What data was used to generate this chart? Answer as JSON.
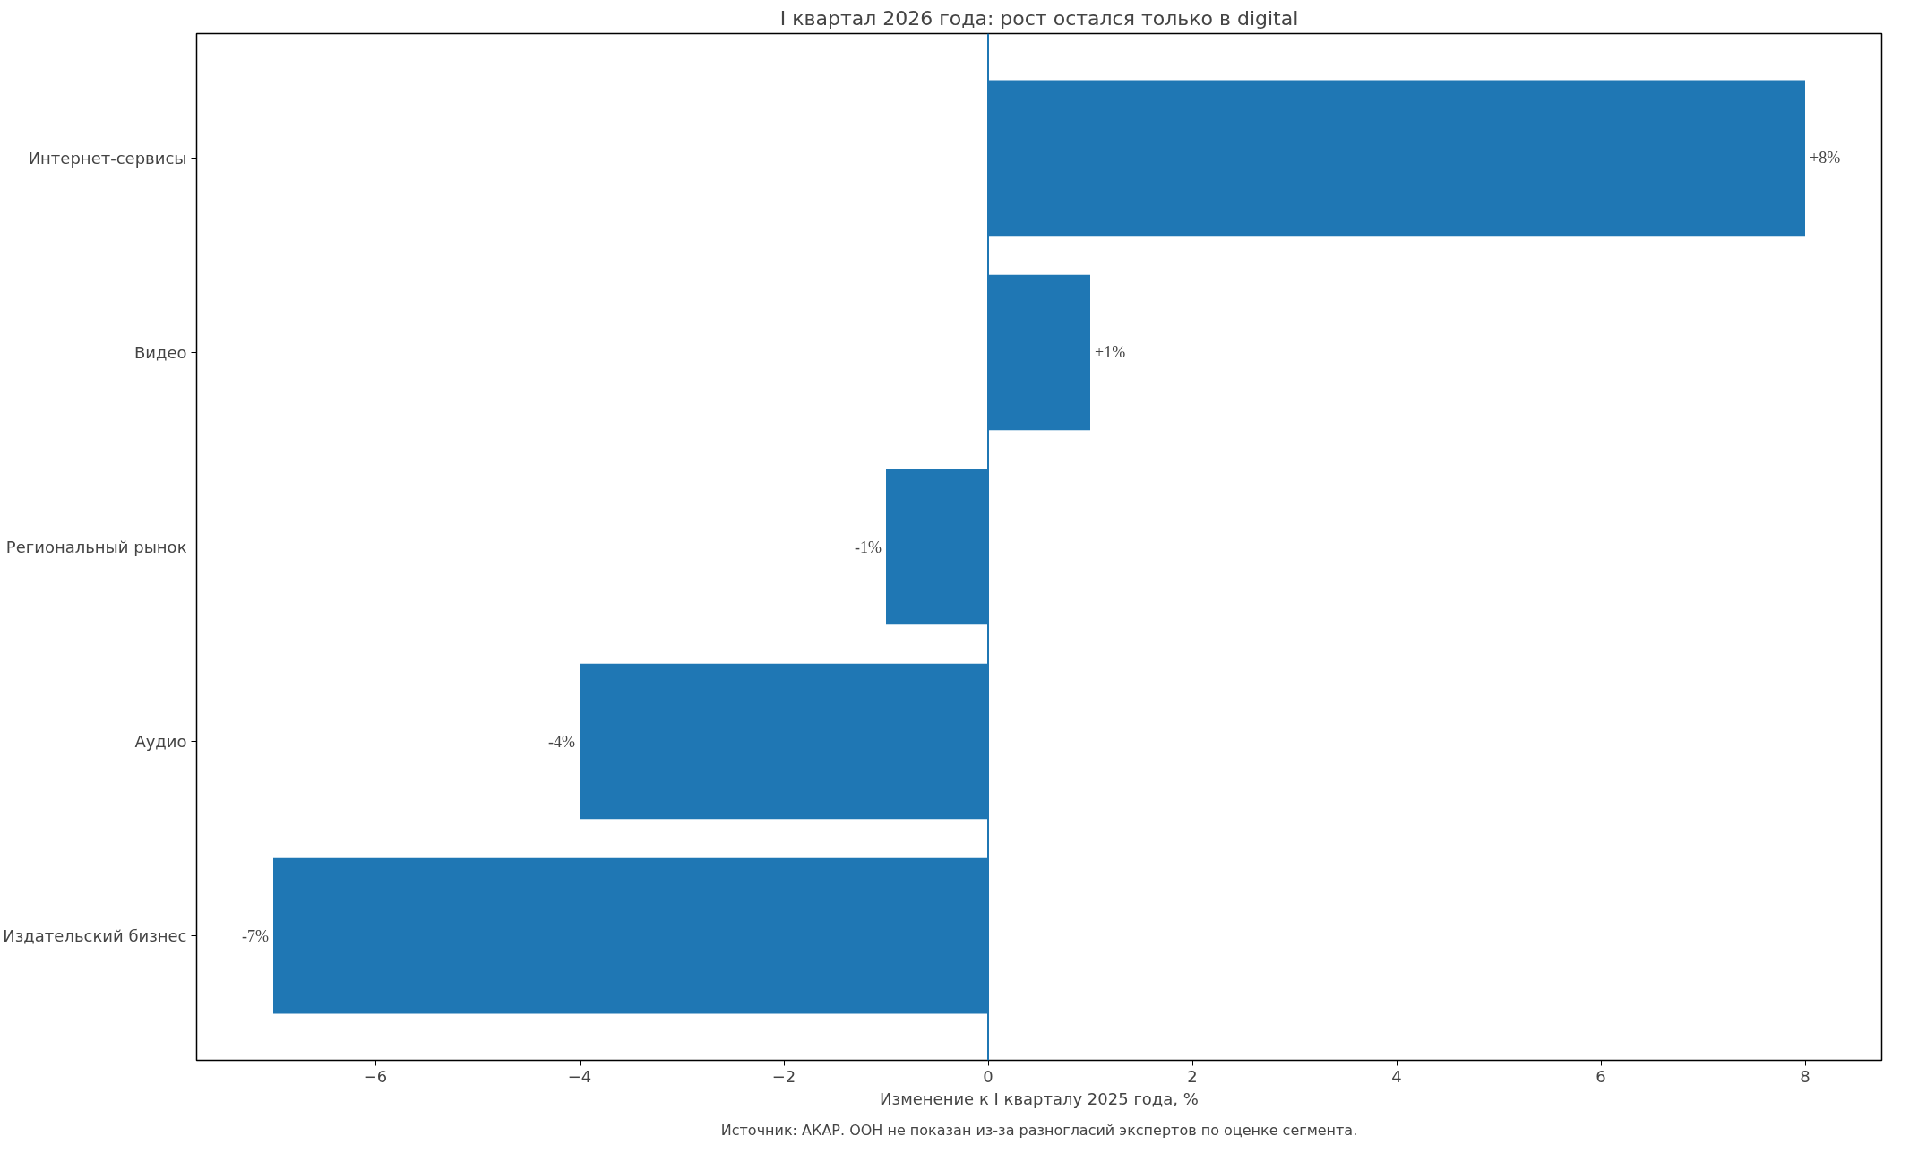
{
  "chart_data": {
    "type": "bar",
    "orientation": "horizontal",
    "title": "I квартал 2026 года: рост остался только в digital",
    "xlabel": "Изменение к I кварталу 2025 года, %",
    "categories": [
      "Интернет-сервисы",
      "Видео",
      "Региональный рынок",
      "Аудио",
      "Издательский бизнес"
    ],
    "values": [
      8,
      1,
      -1,
      -4,
      -7
    ],
    "value_labels": [
      "+8%",
      "+1%",
      "-1%",
      "-4%",
      "-7%"
    ],
    "color": "#1f77b4",
    "xlim": [
      -7.75,
      8.75
    ],
    "xticks": [
      {
        "value": -6,
        "label": "−6"
      },
      {
        "value": -4,
        "label": "−4"
      },
      {
        "value": -2,
        "label": "−2"
      },
      0,
      2,
      4,
      6,
      8
    ],
    "ref_lines": [
      {
        "axis": "x",
        "value": 0,
        "color": "#1f77b4"
      }
    ],
    "grid": false,
    "annotations": [
      "Источник: АКАР. ООН не показан из-за разногласий экспертов по оценке сегмента."
    ]
  }
}
